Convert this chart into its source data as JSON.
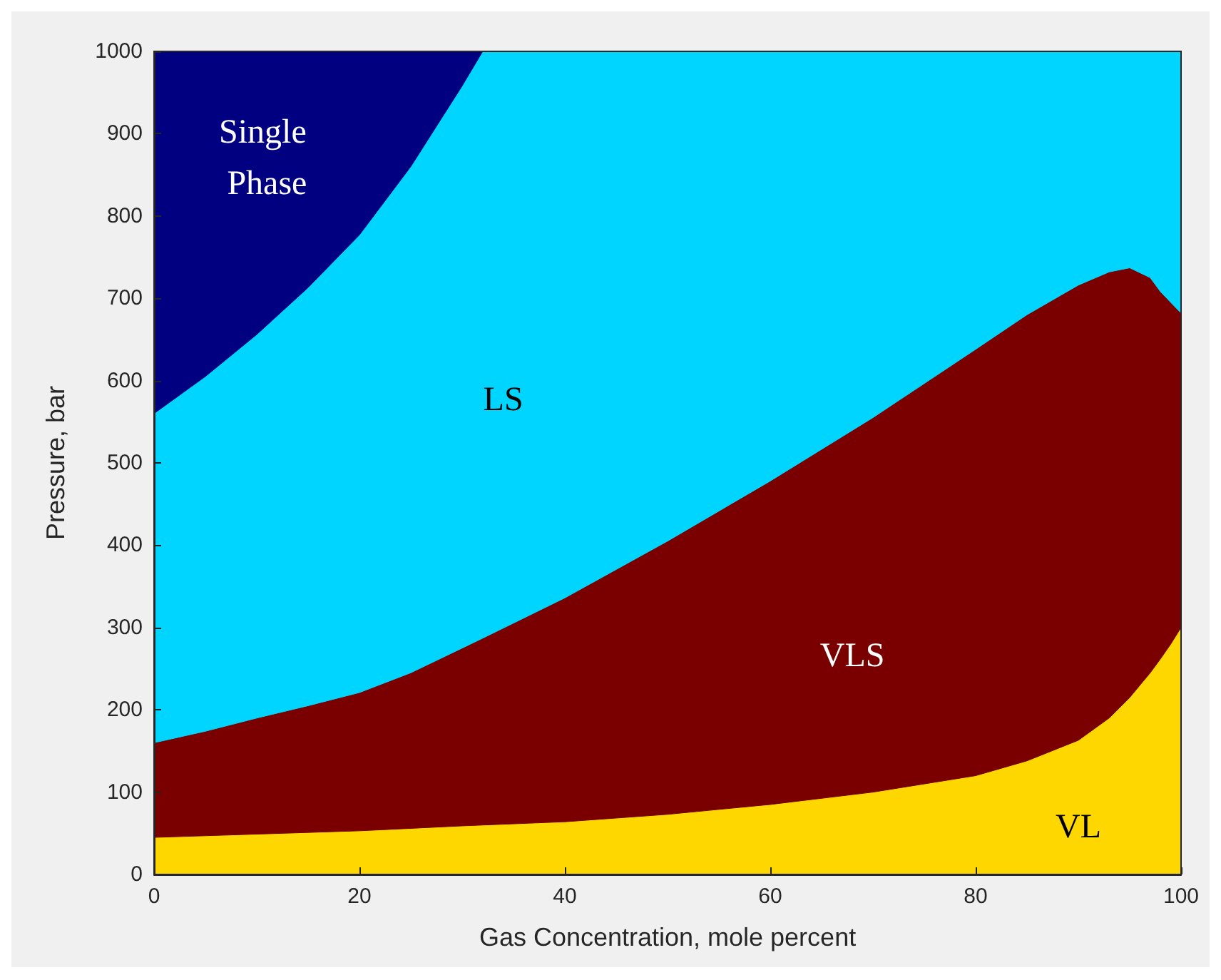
{
  "chart_data": {
    "type": "area",
    "stacked": true,
    "xlabel": "Gas Concentration, mole percent",
    "ylabel": "Pressure, bar",
    "x": [
      0,
      5,
      10,
      15,
      20,
      25,
      30,
      32,
      40,
      50,
      60,
      70,
      80,
      85,
      90,
      93,
      95,
      97,
      98,
      99,
      100
    ],
    "series": [
      {
        "name": "VL",
        "color": "#ffd700",
        "values": [
          45,
          47,
          49,
          51,
          53,
          56,
          59,
          60,
          64,
          73,
          85,
          100,
          120,
          138,
          163,
          190,
          215,
          245,
          262,
          280,
          300
        ]
      },
      {
        "name": "VLS",
        "color": "#7a0000",
        "values": [
          115,
          127,
          141,
          154,
          168,
          189,
          216,
          227,
          272,
          332,
          393,
          455,
          518,
          542,
          553,
          542,
          522,
          480,
          446,
          415,
          382
        ]
      },
      {
        "name": "LS",
        "color": "#00d5ff",
        "values": [
          400,
          431,
          466,
          508,
          556,
          615,
          683,
          713,
          664,
          595,
          522,
          445,
          362,
          320,
          284,
          268,
          263,
          275,
          292,
          305,
          318
        ]
      },
      {
        "name": "Single Phase",
        "color": "#000080",
        "values": [
          440,
          395,
          344,
          287,
          223,
          140,
          42,
          0,
          0,
          0,
          0,
          0,
          0,
          0,
          0,
          0,
          0,
          0,
          0,
          0,
          0
        ]
      }
    ],
    "xlim": [
      0,
      100
    ],
    "xticks": [
      0,
      20,
      40,
      60,
      80,
      100
    ],
    "ylim": [
      0,
      1000
    ],
    "yticks": [
      0,
      100,
      200,
      300,
      400,
      500,
      600,
      700,
      800,
      900,
      1000
    ],
    "grid": false
  }
}
